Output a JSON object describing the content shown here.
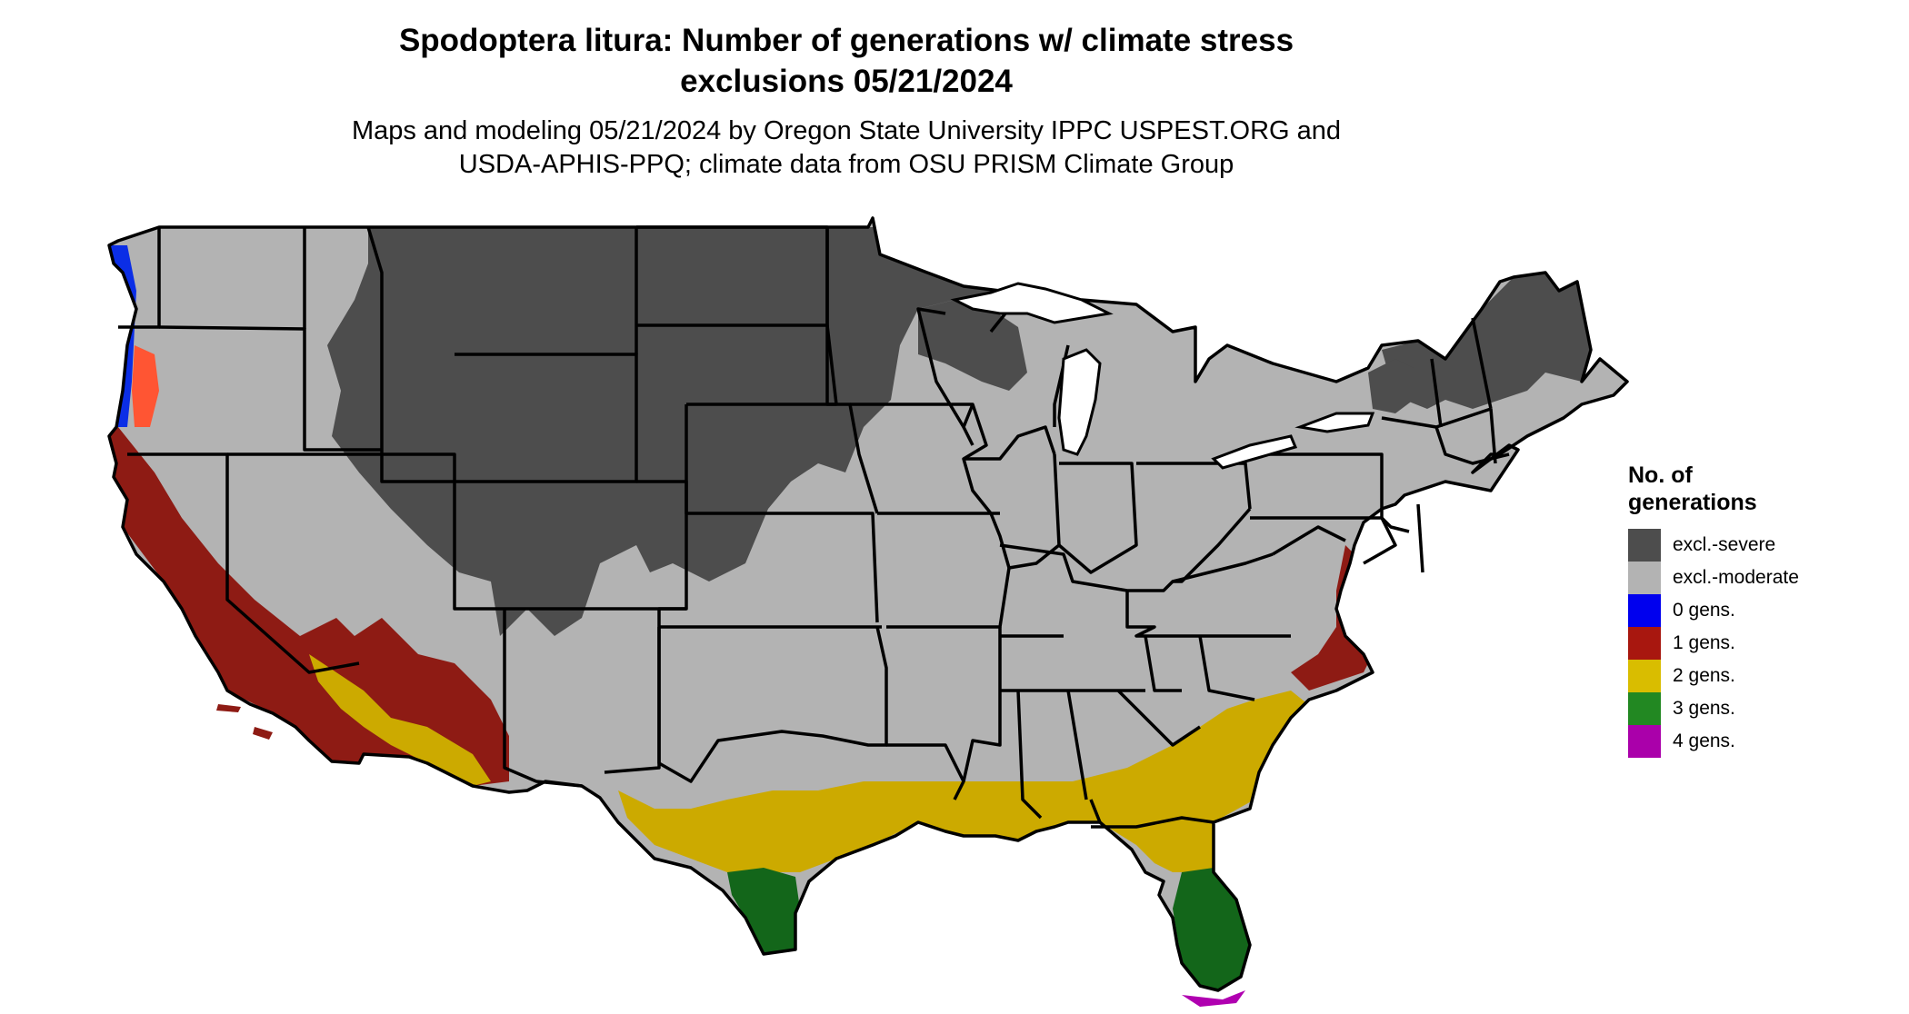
{
  "title": {
    "line1": "Spodoptera litura: Number of generations w/ climate stress",
    "line2": "exclusions 05/21/2024"
  },
  "subtitle": {
    "line1": "Maps and modeling 05/21/2024 by Oregon State University IPPC USPEST.ORG and",
    "line2": "USDA-APHIS-PPQ; climate data from OSU PRISM Climate Group"
  },
  "legend": {
    "title_line1": "No. of",
    "title_line2": "generations",
    "items": [
      {
        "label": "excl.-severe",
        "color": "#4d4d4d"
      },
      {
        "label": "excl.-moderate",
        "color": "#b3b3b3"
      },
      {
        "label": "0 gens.",
        "color": "#0000ee"
      },
      {
        "label": "1 gens.",
        "color": "#a8170f"
      },
      {
        "label": "2 gens.",
        "color": "#d9bd00"
      },
      {
        "label": "3 gens.",
        "color": "#228822"
      },
      {
        "label": "4 gens.",
        "color": "#aa00aa"
      }
    ]
  },
  "map_colors": {
    "severe": "#4d4d4d",
    "moderate": "#b3b3b3",
    "gen0": "#0b2ee6",
    "gen1": "#8e1b14",
    "gen1_light": "#ff5533",
    "gen2": "#ccaa00",
    "gen2_light": "#f2e600",
    "gen3": "#13661a",
    "gen3_light": "#7fcc7f",
    "gen4": "#b000b0",
    "border": "#000000",
    "water": "#ffffff"
  }
}
